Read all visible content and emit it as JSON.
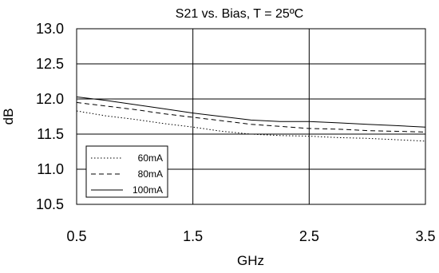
{
  "chart_data": {
    "type": "line",
    "title": "S21 vs. Bias, T = 25ºC",
    "xlabel": "GHz",
    "ylabel": "dB",
    "xlim": [
      0.5,
      3.5
    ],
    "ylim": [
      10.5,
      13.0
    ],
    "xticks": [
      0.5,
      1.5,
      2.5,
      3.5
    ],
    "xtick_labels": [
      "0.5",
      "1.5",
      "2.5",
      "3.5"
    ],
    "yticks": [
      10.5,
      11.0,
      11.5,
      12.0,
      12.5,
      13.0
    ],
    "ytick_labels": [
      "10.5",
      "11.0",
      "11.5",
      "12.0",
      "12.5",
      "13.0"
    ],
    "grid": true,
    "legend_position": "lower-left",
    "x": [
      0.5,
      0.75,
      1.0,
      1.25,
      1.5,
      1.75,
      2.0,
      2.25,
      2.5,
      2.75,
      3.0,
      3.25,
      3.5
    ],
    "series": [
      {
        "name": "60mA",
        "style": "dotted",
        "color": "#000000",
        "values": [
          11.83,
          11.76,
          11.71,
          11.65,
          11.6,
          11.54,
          11.5,
          11.48,
          11.47,
          11.45,
          11.44,
          11.42,
          11.4
        ]
      },
      {
        "name": "80mA",
        "style": "dashed",
        "color": "#000000",
        "values": [
          11.95,
          11.9,
          11.85,
          11.79,
          11.74,
          11.69,
          11.64,
          11.61,
          11.58,
          11.57,
          11.55,
          11.54,
          11.53
        ]
      },
      {
        "name": "100mA",
        "style": "solid",
        "color": "#000000",
        "values": [
          12.03,
          11.98,
          11.92,
          11.86,
          11.8,
          11.75,
          11.7,
          11.68,
          11.68,
          11.66,
          11.64,
          11.62,
          11.6
        ]
      }
    ]
  }
}
